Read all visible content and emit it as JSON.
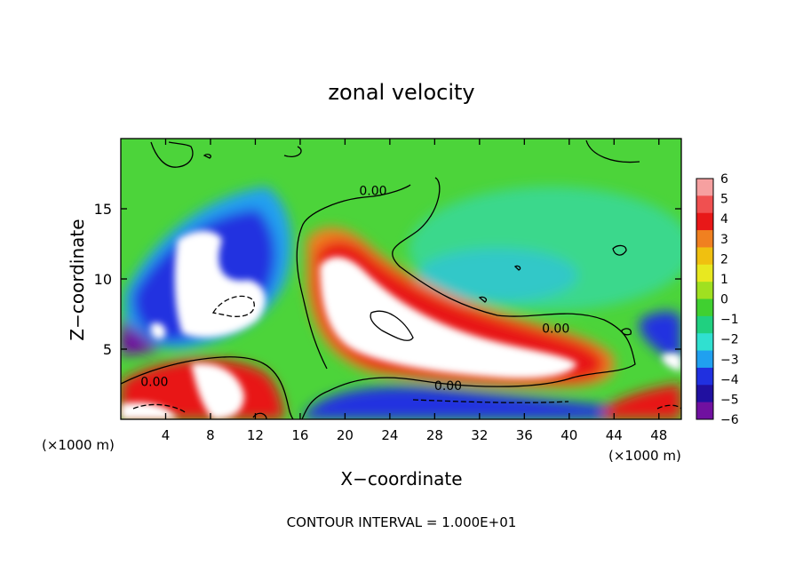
{
  "chart_data": {
    "type": "heatmap",
    "title": "zonal velocity",
    "xlabel": "X−coordinate",
    "ylabel": "Z−coordinate",
    "x_units_left": "(×1000 m)",
    "x_units_right": "(×1000 m)",
    "footer": "CONTOUR INTERVAL = 1.000E+01",
    "xlim": [
      0,
      50
    ],
    "ylim": [
      0,
      20
    ],
    "x_ticks": [
      4,
      8,
      12,
      16,
      20,
      24,
      28,
      32,
      36,
      40,
      44,
      48
    ],
    "y_ticks": [
      5,
      10,
      15
    ],
    "contour_labels": [
      {
        "text": "0.00",
        "x": 22.5,
        "y": 16.3
      },
      {
        "text": "0.00",
        "x": 3.0,
        "y": 2.7
      },
      {
        "text": "0.00",
        "x": 29.2,
        "y": 2.4
      },
      {
        "text": "0.00",
        "x": 38.8,
        "y": 6.5
      }
    ],
    "colorbar": {
      "min": -6,
      "max": 6,
      "labels": [
        "6",
        "5",
        "4",
        "3",
        "2",
        "1",
        "0",
        "−1",
        "−2",
        "−3",
        "−4",
        "−5",
        "−6"
      ],
      "colors": [
        "#f6a0a0",
        "#f05050",
        "#e81818",
        "#f08020",
        "#f0c010",
        "#e8e820",
        "#a0e020",
        "#40d030",
        "#20d080",
        "#30e0d0",
        "#20a0f0",
        "#2030e0",
        "#2010a0",
        "#7010a0"
      ]
    }
  }
}
